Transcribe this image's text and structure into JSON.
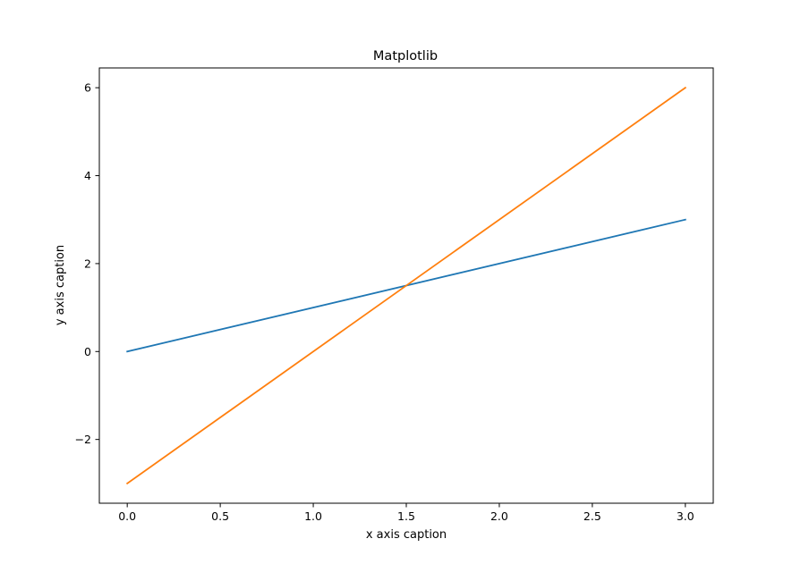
{
  "chart_data": {
    "type": "line",
    "title": "Matplotlib",
    "xlabel": "x axis caption",
    "ylabel": "y axis caption",
    "xlim": [
      -0.15,
      3.15
    ],
    "ylim": [
      -3.45,
      6.45
    ],
    "xticks": [
      0.0,
      0.5,
      1.0,
      1.5,
      2.0,
      2.5,
      3.0
    ],
    "xtick_labels": [
      "0.0",
      "0.5",
      "1.0",
      "1.5",
      "2.0",
      "2.5",
      "3.0"
    ],
    "yticks": [
      -2,
      0,
      2,
      4,
      6
    ],
    "ytick_labels": [
      "−2",
      "0",
      "2",
      "4",
      "6"
    ],
    "grid": false,
    "series": [
      {
        "x": [
          0,
          3
        ],
        "y": [
          0,
          3
        ],
        "color": "#1f77b4"
      },
      {
        "x": [
          0,
          3
        ],
        "y": [
          -3,
          6
        ],
        "color": "#ff7f0e"
      }
    ]
  }
}
